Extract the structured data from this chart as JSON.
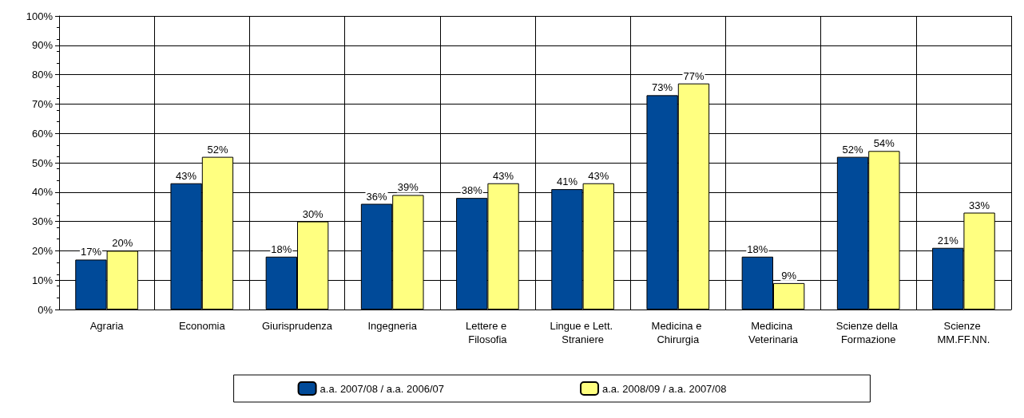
{
  "chart_data": {
    "type": "bar",
    "categories": [
      "Agraria",
      "Economia",
      "Giurisprudenza",
      "Ingegneria",
      "Lettere e Filosofia",
      "Lingue e Lett. Straniere",
      "Medicina e Chirurgia",
      "Medicina Veterinaria",
      "Scienze della Formazione",
      "Scienze MM.FF.NN."
    ],
    "series": [
      {
        "name": "a.a. 2007/08 / a.a. 2006/07",
        "color": "#004a99",
        "values": [
          17,
          43,
          18,
          36,
          38,
          41,
          73,
          18,
          52,
          21
        ],
        "value_labels": [
          "17%",
          "43%",
          "18%",
          "36%",
          "38%",
          "41%",
          "73%",
          "18%",
          "52%",
          "21%"
        ]
      },
      {
        "name": "a.a. 2008/09 / a.a. 2007/08",
        "color": "#ffff80",
        "values": [
          20,
          52,
          30,
          39,
          43,
          43,
          77,
          9,
          54,
          33
        ],
        "value_labels": [
          "20%",
          "52%",
          "30%",
          "39%",
          "43%",
          "43%",
          "77%",
          "9%",
          "54%",
          "33%"
        ]
      }
    ],
    "ylim": [
      0,
      100
    ],
    "yticks": [
      {
        "value": 0,
        "label": "0%"
      },
      {
        "value": 10,
        "label": "10%"
      },
      {
        "value": 20,
        "label": "20%"
      },
      {
        "value": 30,
        "label": "30%"
      },
      {
        "value": 40,
        "label": "40%"
      },
      {
        "value": 50,
        "label": "50%"
      },
      {
        "value": 60,
        "label": "60%"
      },
      {
        "value": 70,
        "label": "70%"
      },
      {
        "value": 80,
        "label": "80%"
      },
      {
        "value": 90,
        "label": "90%"
      },
      {
        "value": 100,
        "label": "100%"
      }
    ],
    "grid": true,
    "legend": "bottom"
  }
}
